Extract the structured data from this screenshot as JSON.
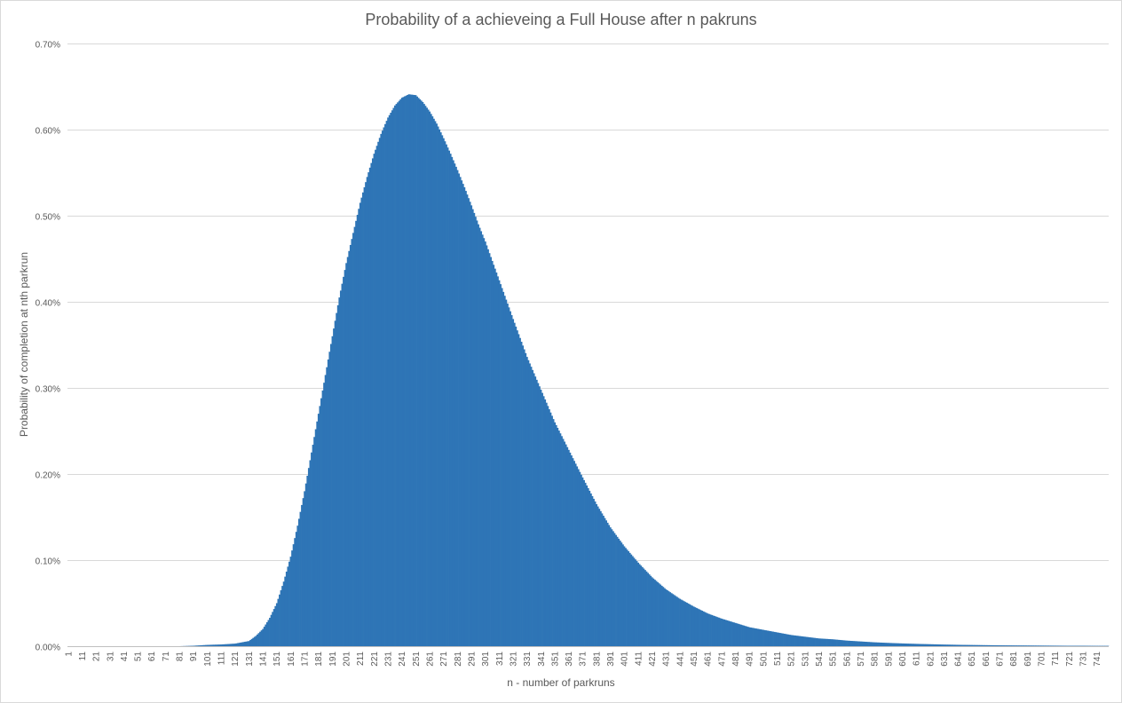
{
  "chart_data": {
    "type": "bar",
    "title": "Probability of a achieveing a Full House after n pakruns",
    "xlabel": "n - number of parkruns",
    "ylabel": "Probability of completion at nth parkrun",
    "ylim": [
      0,
      0.7
    ],
    "y_unit": "%",
    "yticks": [
      "0.00%",
      "0.10%",
      "0.20%",
      "0.30%",
      "0.40%",
      "0.50%",
      "0.60%",
      "0.70%"
    ],
    "x_range": [
      1,
      749
    ],
    "x_tick_step": 10,
    "grid": true,
    "legend": "none",
    "color": "#2e75b6",
    "series": [
      {
        "x": [
          1,
          81,
          91,
          101,
          111,
          121,
          131,
          136,
          141,
          146,
          151,
          156,
          161,
          166,
          171,
          176,
          181,
          186,
          191,
          196,
          201,
          206,
          211,
          216,
          221,
          226,
          231,
          236,
          241,
          246,
          251,
          256,
          261,
          266,
          271,
          276,
          281,
          286,
          291,
          296,
          301,
          311,
          321,
          331,
          341,
          351,
          361,
          371,
          381,
          391,
          401,
          411,
          421,
          431,
          441,
          451,
          461,
          471,
          481,
          491,
          501,
          511,
          521,
          531,
          541,
          551,
          561,
          571,
          581,
          591,
          601,
          611,
          621,
          631,
          641,
          651,
          661,
          671,
          681,
          691,
          701,
          711,
          721,
          731,
          741,
          749
        ],
        "values": [
          0,
          0,
          0.0005,
          0.0015,
          0.002,
          0.003,
          0.006,
          0.012,
          0.02,
          0.033,
          0.05,
          0.075,
          0.104,
          0.14,
          0.18,
          0.225,
          0.27,
          0.315,
          0.36,
          0.405,
          0.445,
          0.48,
          0.515,
          0.545,
          0.572,
          0.595,
          0.614,
          0.628,
          0.637,
          0.641,
          0.64,
          0.632,
          0.621,
          0.607,
          0.59,
          0.572,
          0.553,
          0.533,
          0.512,
          0.49,
          0.47,
          0.425,
          0.38,
          0.336,
          0.298,
          0.26,
          0.228,
          0.196,
          0.165,
          0.138,
          0.116,
          0.097,
          0.08,
          0.066,
          0.055,
          0.046,
          0.038,
          0.032,
          0.027,
          0.022,
          0.019,
          0.016,
          0.013,
          0.011,
          0.009,
          0.008,
          0.0065,
          0.0055,
          0.0045,
          0.0038,
          0.0032,
          0.0027,
          0.0023,
          0.0019,
          0.0016,
          0.0014,
          0.0012,
          0.001,
          0.0009,
          0.0008,
          0.0007,
          0.0006,
          0.0005,
          0.0005,
          0.0004,
          0.0004
        ]
      }
    ]
  }
}
